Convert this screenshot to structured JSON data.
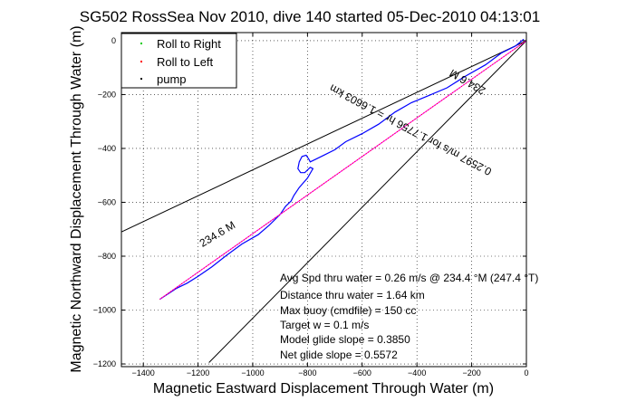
{
  "chart_data": {
    "type": "line",
    "title": "SG502 RossSea Nov 2010, dive 140 started 05-Dec-2010 04:13:01",
    "xlabel": "Magnetic Eastward Displacement Through Water (m)",
    "ylabel": "Magnetic Northward Displacement Through Water (m)",
    "xlim": [
      -1480,
      0
    ],
    "ylim": [
      -1210,
      30
    ],
    "x_ticks": [
      -1400,
      -1200,
      -1000,
      -800,
      -600,
      -400,
      -200,
      0
    ],
    "x_tick_labels": [
      "−1400",
      "−1200",
      "−1000",
      "−800",
      "−600",
      "−400",
      "−200",
      "0"
    ],
    "y_ticks": [
      0,
      -200,
      -400,
      -600,
      -800,
      -1000,
      -1200
    ],
    "y_tick_labels": [
      "0",
      "−200",
      "−400",
      "−600",
      "−800",
      "−1000",
      "−1200"
    ],
    "grid": true,
    "legend_position": "top-left",
    "legend": [
      {
        "label": "Roll to Right",
        "color": "#00cc00",
        "marker": "dot"
      },
      {
        "label": "Roll to Left",
        "color": "#ff0000",
        "marker": "dot"
      },
      {
        "label": "pump",
        "color": "#000000",
        "marker": "dot"
      }
    ],
    "series": [
      {
        "color": "#0000ff",
        "x": [
          -10,
          -40,
          -90,
          -150,
          -220,
          -290,
          -360,
          -420,
          -480,
          -540,
          -600,
          -660,
          -700,
          -740,
          -770,
          -790,
          -795,
          -805,
          -820,
          -830,
          -835,
          -825,
          -810,
          -790,
          -780,
          -800,
          -830,
          -850,
          -860,
          -880,
          -900,
          -940,
          -980,
          -1040,
          -1100,
          -1150,
          -1200,
          -1240,
          -1280,
          -1310,
          -1340
        ],
        "y": [
          5,
          -20,
          -45,
          -90,
          -130,
          -175,
          -205,
          -230,
          -265,
          -310,
          -345,
          -375,
          -405,
          -425,
          -440,
          -450,
          -440,
          -425,
          -430,
          -450,
          -475,
          -490,
          -490,
          -470,
          -475,
          -510,
          -545,
          -575,
          -595,
          -615,
          -645,
          -685,
          -720,
          -755,
          -800,
          -840,
          -875,
          -900,
          -920,
          -940,
          -960
        ]
      },
      {
        "color": "#ff00ff",
        "x": [
          0,
          -1340
        ],
        "y": [
          0,
          -960
        ]
      }
    ],
    "reference_lines": [
      {
        "x": [
          0,
          -1480
        ],
        "y": [
          0,
          -710
        ],
        "color": "#000000"
      },
      {
        "x": [
          0,
          -1160
        ],
        "y": [
          0,
          -1195
        ],
        "color": "#000000"
      }
    ],
    "annotations": [
      {
        "text": "234.6 M",
        "rotation_deg": 31
      },
      {
        "text": "234.6 M",
        "rotation_deg": 210
      },
      {
        "text": "0.2597 m/s for 1.7756 hr = 1.6603 km",
        "rotation_deg": 208
      }
    ],
    "stats": [
      "Avg Spd thru water =  0.26 m/s @ 234.4    °M (247.4 °T)",
      "Distance thru water = 1.64 km",
      "Max buoy (cmdfile) = 150 cc",
      "Target w = 0.1 m/s",
      "Model glide slope = 0.3850",
      "Net glide slope = 0.5572"
    ]
  }
}
